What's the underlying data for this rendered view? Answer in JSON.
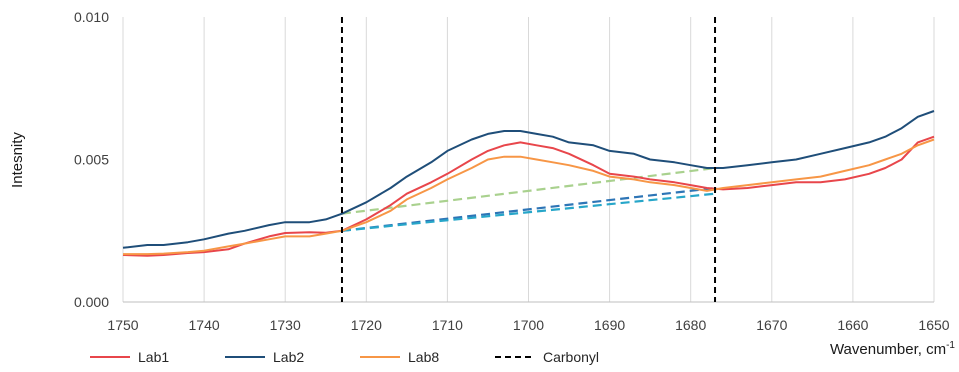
{
  "chart_data": {
    "type": "line",
    "title": "",
    "xlabel": "Wavenumber, cm",
    "xlabel_sup": "-1",
    "ylabel": "Intesnity",
    "xlim": [
      1750,
      1650
    ],
    "x_reversed": true,
    "ylim": [
      0,
      0.01
    ],
    "x_ticks": [
      1750,
      1740,
      1730,
      1720,
      1710,
      1700,
      1690,
      1680,
      1670,
      1660,
      1650
    ],
    "x_tick_labels": [
      "1750",
      "1740",
      "1730",
      "1720",
      "1710",
      "1700",
      "1690",
      "1680",
      "1670",
      "1660",
      "1650"
    ],
    "y_ticks": [
      0,
      0.005,
      0.01
    ],
    "y_tick_labels": [
      "0.000",
      "0.005",
      "0.010"
    ],
    "grid": {
      "vertical": true,
      "horizontal": false
    },
    "legend_position": "bottom",
    "series": [
      {
        "name": "Lab1",
        "color": "#E8464B",
        "x": [
          1750,
          1747,
          1745,
          1742,
          1740,
          1737,
          1735,
          1732,
          1730,
          1727,
          1725,
          1723,
          1720,
          1717,
          1715,
          1712,
          1710,
          1707,
          1705,
          1703,
          1701,
          1699,
          1697,
          1695,
          1692,
          1690,
          1687,
          1685,
          1682,
          1680,
          1678,
          1676,
          1673,
          1670,
          1667,
          1664,
          1661,
          1658,
          1656,
          1654,
          1652,
          1650
        ],
        "y": [
          0.00165,
          0.00162,
          0.00165,
          0.00172,
          0.00175,
          0.00185,
          0.00205,
          0.0023,
          0.00242,
          0.00245,
          0.00243,
          0.0025,
          0.0029,
          0.0034,
          0.0038,
          0.0042,
          0.0045,
          0.005,
          0.0053,
          0.0055,
          0.0056,
          0.0055,
          0.0054,
          0.0052,
          0.0048,
          0.0045,
          0.0044,
          0.0043,
          0.0042,
          0.0041,
          0.004,
          0.00395,
          0.004,
          0.0041,
          0.0042,
          0.0042,
          0.0043,
          0.0045,
          0.0047,
          0.005,
          0.0056,
          0.0058
        ]
      },
      {
        "name": "Lab2",
        "color": "#1F4E79",
        "x": [
          1750,
          1747,
          1745,
          1742,
          1740,
          1737,
          1735,
          1732,
          1730,
          1727,
          1725,
          1723,
          1720,
          1717,
          1715,
          1712,
          1710,
          1707,
          1705,
          1703,
          1701,
          1699,
          1697,
          1695,
          1692,
          1690,
          1687,
          1685,
          1682,
          1680,
          1678,
          1676,
          1673,
          1670,
          1667,
          1664,
          1661,
          1658,
          1656,
          1654,
          1652,
          1650
        ],
        "y": [
          0.0019,
          0.002,
          0.002,
          0.0021,
          0.0022,
          0.0024,
          0.0025,
          0.0027,
          0.0028,
          0.0028,
          0.0029,
          0.0031,
          0.0035,
          0.004,
          0.0044,
          0.0049,
          0.0053,
          0.0057,
          0.0059,
          0.006,
          0.006,
          0.0059,
          0.0058,
          0.0056,
          0.0055,
          0.0053,
          0.0052,
          0.005,
          0.0049,
          0.0048,
          0.0047,
          0.0047,
          0.0048,
          0.0049,
          0.005,
          0.0052,
          0.0054,
          0.0056,
          0.0058,
          0.0061,
          0.0065,
          0.0067
        ]
      },
      {
        "name": "Lab8",
        "color": "#F79646",
        "x": [
          1750,
          1747,
          1745,
          1742,
          1740,
          1737,
          1735,
          1732,
          1730,
          1727,
          1725,
          1723,
          1720,
          1717,
          1715,
          1712,
          1710,
          1707,
          1705,
          1703,
          1701,
          1699,
          1697,
          1695,
          1692,
          1690,
          1687,
          1685,
          1682,
          1680,
          1678,
          1676,
          1673,
          1670,
          1667,
          1664,
          1661,
          1658,
          1656,
          1654,
          1652,
          1650
        ],
        "y": [
          0.00168,
          0.00168,
          0.0017,
          0.00175,
          0.0018,
          0.00195,
          0.00205,
          0.0022,
          0.0023,
          0.0023,
          0.0024,
          0.0025,
          0.0028,
          0.0032,
          0.0036,
          0.004,
          0.0043,
          0.0047,
          0.005,
          0.0051,
          0.0051,
          0.005,
          0.0049,
          0.0048,
          0.0046,
          0.0044,
          0.0043,
          0.0042,
          0.0041,
          0.004,
          0.0039,
          0.004,
          0.0041,
          0.0042,
          0.0043,
          0.0044,
          0.0046,
          0.0048,
          0.005,
          0.0052,
          0.0055,
          0.0057
        ]
      },
      {
        "name": "Carbonyl",
        "color": "#000000",
        "style": "dashed",
        "vertical_lines_at_x": [
          1723,
          1677
        ]
      }
    ],
    "baselines": [
      {
        "color": "#A9D18E",
        "x": [
          1723,
          1677
        ],
        "y": [
          0.0031,
          0.0047
        ]
      },
      {
        "color": "#2E75B6",
        "x": [
          1723,
          1677
        ],
        "y": [
          0.0025,
          0.004
        ]
      },
      {
        "color": "#27A6C9",
        "x": [
          1723,
          1677
        ],
        "y": [
          0.0025,
          0.0038
        ]
      }
    ]
  }
}
